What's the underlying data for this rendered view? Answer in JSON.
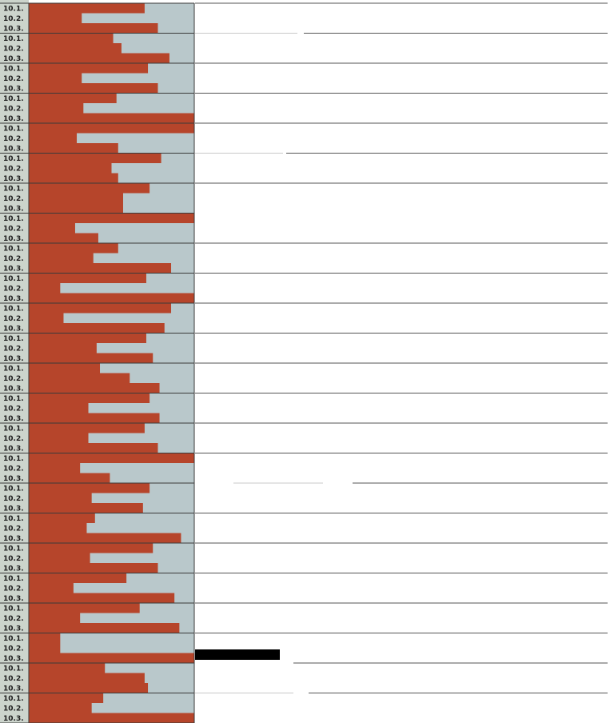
{
  "chart_data": {
    "type": "bar",
    "orientation": "horizontal",
    "row_labels": [
      "10.1.",
      "10.2.",
      "10.3."
    ],
    "xlim": [
      0,
      100
    ],
    "grid": false,
    "legend": "none",
    "groups": [
      [
        70,
        32,
        78
      ],
      [
        51,
        56,
        85
      ],
      [
        72,
        32,
        78
      ],
      [
        53,
        33,
        100
      ],
      [
        100,
        29,
        54
      ],
      [
        80,
        50,
        54
      ],
      [
        73,
        57,
        57
      ],
      [
        100,
        28,
        42
      ],
      [
        54,
        39,
        86
      ],
      [
        71,
        19,
        100
      ],
      [
        86,
        21,
        82
      ],
      [
        71,
        41,
        75
      ],
      [
        43,
        61,
        79
      ],
      [
        73,
        36,
        79
      ],
      [
        70,
        36,
        78
      ],
      [
        100,
        31,
        49
      ],
      [
        73,
        38,
        69
      ],
      [
        40,
        35,
        92
      ],
      [
        75,
        37,
        78
      ],
      [
        59,
        27,
        88
      ],
      [
        67,
        31,
        91
      ],
      [
        19,
        19,
        100
      ],
      [
        46,
        70,
        72
      ],
      [
        45,
        38,
        100
      ]
    ],
    "colors": {
      "bar": "#b6452b",
      "track": "#b9c8cb",
      "label_bg": "#ccd4cc",
      "separator": "#3a3a3a",
      "rule": "#555555",
      "block": "#000000"
    }
  }
}
